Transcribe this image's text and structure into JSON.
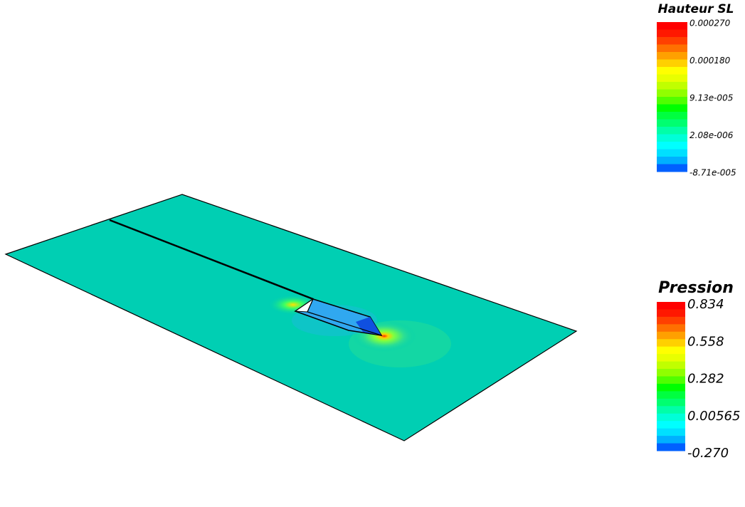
{
  "legends": [
    {
      "title": "Hauteur SL",
      "labels": [
        "0.000270",
        "0.000180",
        "9.13e-005",
        "2.08e-006",
        "-8.71e-005"
      ]
    },
    {
      "title": "Pression",
      "labels": [
        "0.834",
        "0.558",
        "0.282",
        "0.00565",
        "-0.270"
      ]
    }
  ]
}
